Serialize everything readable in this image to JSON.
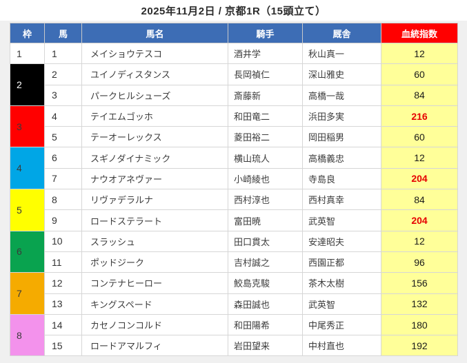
{
  "page": {
    "title": "2025年11月2日 / 京都1R（15頭立て）"
  },
  "table": {
    "headers": [
      "枠",
      "馬",
      "馬名",
      "騎手",
      "厩舎",
      "血統指数"
    ],
    "header_colors": {
      "default_bg": "#3d6db5",
      "index_bg": "#ff0000",
      "text": "#ffffff"
    },
    "index_column": {
      "bg": "#ffff99",
      "highlight_text": "#e60000",
      "normal_text": "#1a1a1a"
    },
    "frames": [
      {
        "num": "1",
        "rows": 1,
        "color": "#ffffff",
        "text_color": "#3a3a3a"
      },
      {
        "num": "2",
        "rows": 2,
        "color": "#000000",
        "text_color": "#ffffff"
      },
      {
        "num": "3",
        "rows": 2,
        "color": "#ff0000",
        "text_color": "#3a3a3a"
      },
      {
        "num": "4",
        "rows": 2,
        "color": "#00a6e6",
        "text_color": "#3a3a3a"
      },
      {
        "num": "5",
        "rows": 2,
        "color": "#ffff00",
        "text_color": "#3a3a3a"
      },
      {
        "num": "6",
        "rows": 2,
        "color": "#09a34f",
        "text_color": "#3a3a3a"
      },
      {
        "num": "7",
        "rows": 2,
        "color": "#f5ab00",
        "text_color": "#3a3a3a"
      },
      {
        "num": "8",
        "rows": 2,
        "color": "#f392ec",
        "text_color": "#3a3a3a"
      }
    ],
    "horses": [
      {
        "num": "1",
        "name": "メイショウテスコ",
        "jockey": "酒井学",
        "stable": "秋山真一",
        "index": "12",
        "highlight": false
      },
      {
        "num": "2",
        "name": "ユイノディスタンス",
        "jockey": "長岡禎仁",
        "stable": "深山雅史",
        "index": "60",
        "highlight": false
      },
      {
        "num": "3",
        "name": "パークヒルシューズ",
        "jockey": "斎藤新",
        "stable": "高橋一哉",
        "index": "84",
        "highlight": false
      },
      {
        "num": "4",
        "name": "テイエムゴッホ",
        "jockey": "和田竜二",
        "stable": "浜田多実",
        "index": "216",
        "highlight": true
      },
      {
        "num": "5",
        "name": "テーオーレックス",
        "jockey": "菱田裕二",
        "stable": "岡田稲男",
        "index": "60",
        "highlight": false
      },
      {
        "num": "6",
        "name": "スギノダイナミック",
        "jockey": "横山琉人",
        "stable": "高橋義忠",
        "index": "12",
        "highlight": false
      },
      {
        "num": "7",
        "name": "ナウオアネヴァー",
        "jockey": "小崎綾也",
        "stable": "寺島良",
        "index": "204",
        "highlight": true
      },
      {
        "num": "8",
        "name": "リヴァデラルナ",
        "jockey": "西村淳也",
        "stable": "西村真幸",
        "index": "84",
        "highlight": false
      },
      {
        "num": "9",
        "name": "ロードステラート",
        "jockey": "富田暁",
        "stable": "武英智",
        "index": "204",
        "highlight": true
      },
      {
        "num": "10",
        "name": "スラッシュ",
        "jockey": "田口貫太",
        "stable": "安達昭夫",
        "index": "12",
        "highlight": false
      },
      {
        "num": "11",
        "name": "ポッドジーク",
        "jockey": "吉村誠之",
        "stable": "西園正都",
        "index": "96",
        "highlight": false
      },
      {
        "num": "12",
        "name": "コンテナヒーロー",
        "jockey": "鮫島克駿",
        "stable": "茶木太樹",
        "index": "156",
        "highlight": false
      },
      {
        "num": "13",
        "name": "キングスペード",
        "jockey": "森田誠也",
        "stable": "武英智",
        "index": "132",
        "highlight": false
      },
      {
        "num": "14",
        "name": "カセノコンコルド",
        "jockey": "和田陽希",
        "stable": "中尾秀正",
        "index": "180",
        "highlight": false
      },
      {
        "num": "15",
        "name": "ロードアマルフィ",
        "jockey": "岩田望来",
        "stable": "中村直也",
        "index": "192",
        "highlight": false
      }
    ]
  }
}
